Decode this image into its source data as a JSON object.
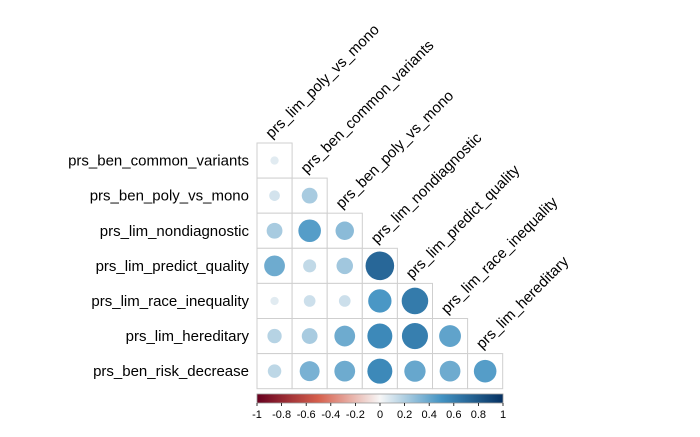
{
  "chart_data": {
    "type": "heatmap",
    "subtype": "correlation-circle-lower-triangle",
    "column_labels": [
      "prs_lim_poly_vs_mono",
      "prs_ben_common_variants",
      "prs_ben_poly_vs_mono",
      "prs_lim_nondiagnostic",
      "prs_lim_predict_quality",
      "prs_lim_race_inequality",
      "prs_lim_hereditary"
    ],
    "row_labels": [
      "prs_ben_common_variants",
      "prs_ben_poly_vs_mono",
      "prs_lim_nondiagnostic",
      "prs_lim_predict_quality",
      "prs_lim_race_inequality",
      "prs_lim_hereditary",
      "prs_ben_risk_decrease"
    ],
    "matrix": [
      [
        0.06
      ],
      [
        0.1,
        0.22
      ],
      [
        0.22,
        0.45,
        0.3
      ],
      [
        0.38,
        0.15,
        0.24,
        0.72
      ],
      [
        0.06,
        0.12,
        0.12,
        0.48,
        0.62
      ],
      [
        0.18,
        0.22,
        0.38,
        0.55,
        0.6,
        0.42
      ],
      [
        0.16,
        0.35,
        0.38,
        0.55,
        0.4,
        0.38,
        0.45
      ]
    ],
    "colorbar": {
      "range": [
        -1,
        1
      ],
      "ticks": [
        "-1",
        "-0.8",
        "-0.6",
        "-0.4",
        "-0.2",
        "0",
        "0.2",
        "0.4",
        "0.6",
        "0.8",
        "1"
      ],
      "colors": {
        "neg_strong": "#67001f",
        "neg_mid": "#d6604d",
        "neutral": "#f7f7f7",
        "pos_mid": "#4393c3",
        "pos_strong": "#053061"
      }
    }
  }
}
